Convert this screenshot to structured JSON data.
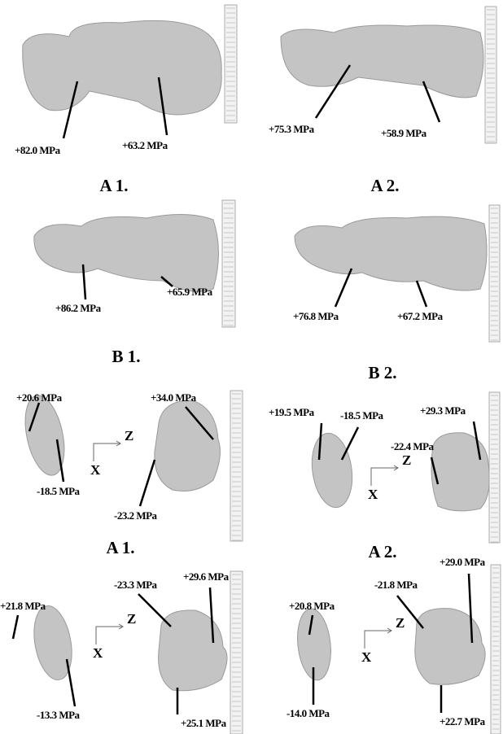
{
  "panels": [
    {
      "label": "A 1.",
      "annotations": [
        "+82.0 MPa",
        "+63.2 MPa"
      ]
    },
    {
      "label": "A 2.",
      "annotations": [
        "+75.3 MPa",
        "+58.9 MPa"
      ]
    },
    {
      "label": "B 1.",
      "annotations": [
        "+86.2 MPa",
        "+65.9 MPa"
      ]
    },
    {
      "label": "B 2.",
      "annotations": [
        "+76.8 MPa",
        "+67.2 MPa"
      ]
    },
    {
      "label": "A 1.",
      "annotations": [
        "+20.6 MPa",
        "+34.0 MPa",
        "-18.5 MPa",
        "-23.2 MPa"
      ],
      "axes": {
        "z": "Z",
        "x": "X"
      }
    },
    {
      "label": "A 2.",
      "annotations": [
        "+19.5 MPa",
        "-18.5 MPa",
        "+29.3 MPa",
        "-22.4 MPa"
      ],
      "axes": {
        "z": "Z",
        "x": "X"
      }
    },
    {
      "annotations": [
        "+21.8 MPa",
        "-23.3 MPa",
        "+29.6 MPa",
        "-13.3 MPa",
        "+25.1 MPa"
      ],
      "axes": {
        "z": "Z",
        "x": "X"
      }
    },
    {
      "annotations": [
        "+20.8 MPa",
        "-21.8 MPa",
        "+29.0 MPa",
        "-14.0 MPa",
        "+22.7 MPa"
      ],
      "axes": {
        "z": "Z",
        "x": "X"
      }
    }
  ]
}
